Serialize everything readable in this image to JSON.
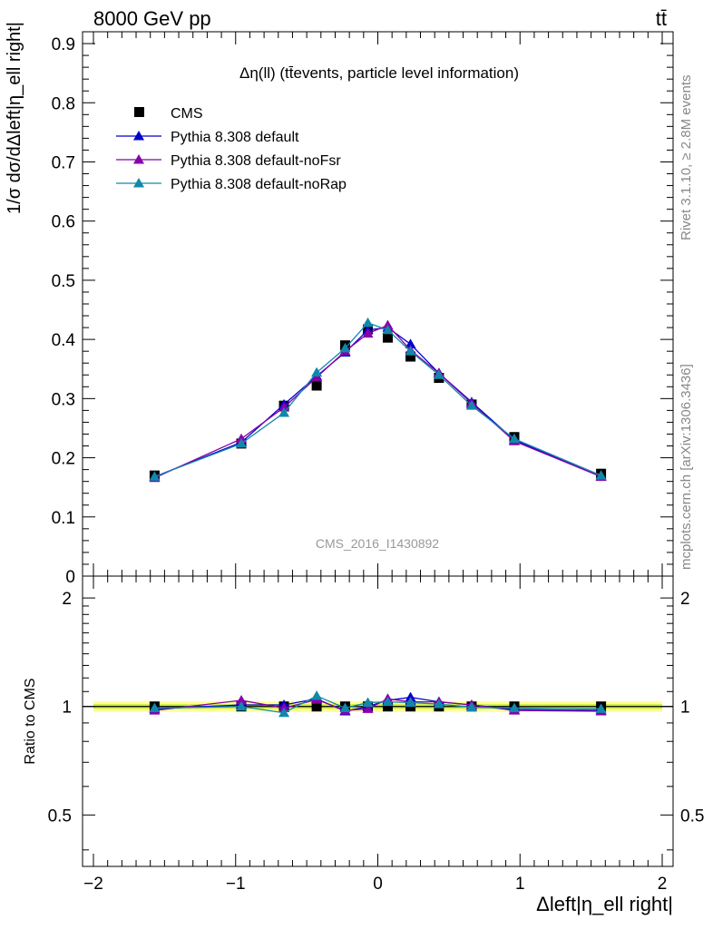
{
  "header": {
    "energy_label": "8000 GeV pp",
    "process_label": "tt̄",
    "plot_title": "Δη(ll) (tt̄events, particle level information)",
    "analysis_id": "CMS_2016_I1430892"
  },
  "side": {
    "rivet_label": "Rivet 3.1.10, ≥ 2.8M events",
    "site_label": "mcplots.cern.ch [arXiv:1306.3436]"
  },
  "chart_data": {
    "type": "line",
    "title": "Δη(ll) (tt̄events, particle level information)",
    "xlabel": "Δleft|η_ell right|",
    "ylabel": "1/σ dσ/dΔleft|η_ell right|",
    "ratio_ylabel": "Ratio to CMS",
    "xlim": [
      -2,
      2
    ],
    "ylim": [
      0,
      0.92
    ],
    "ratio_ylim": [
      0.36,
      2.3
    ],
    "ratio_scale": "log",
    "xticks": [
      -2,
      -1,
      0,
      1,
      2
    ],
    "xtick_labels": [
      "−2",
      "−1",
      "0",
      "1",
      "2"
    ],
    "yticks": [
      0,
      0.1,
      0.2,
      0.3,
      0.4,
      0.5,
      0.6,
      0.7,
      0.8,
      0.9
    ],
    "ytick_labels": [
      "0",
      "0.1",
      "0.2",
      "0.3",
      "0.4",
      "0.5",
      "0.6",
      "0.7",
      "0.8",
      "0.9"
    ],
    "ratio_yticks": [
      0.5,
      1,
      2
    ],
    "ratio_ytick_labels": [
      "0.5",
      "1",
      "2"
    ],
    "grid": false,
    "legend_position": "top-left",
    "x": [
      -1.57,
      -0.96,
      -0.66,
      -0.43,
      -0.23,
      -0.07,
      0.07,
      0.23,
      0.43,
      0.66,
      0.96,
      1.57
    ],
    "series": [
      {
        "name": "CMS",
        "color": "#000000",
        "marker": "square",
        "values": [
          0.17,
          0.224,
          0.288,
          0.322,
          0.39,
          0.417,
          0.403,
          0.371,
          0.335,
          0.29,
          0.235,
          0.173
        ],
        "ratio": [
          1.0,
          1.0,
          1.0,
          1.0,
          1.0,
          1.0,
          1.0,
          1.0,
          1.0,
          1.0,
          1.0,
          1.0
        ]
      },
      {
        "name": "Pythia 8.308 default",
        "color": "#0000cc",
        "marker": "triangle",
        "values": [
          0.168,
          0.226,
          0.29,
          0.338,
          0.378,
          0.416,
          0.42,
          0.392,
          0.343,
          0.294,
          0.23,
          0.168
        ],
        "ratio": [
          0.985,
          1.01,
          1.01,
          1.05,
          0.97,
          1.0,
          1.04,
          1.06,
          1.03,
          1.01,
          0.98,
          0.975
        ]
      },
      {
        "name": "Pythia 8.308 default-noFsr",
        "color": "#8800aa",
        "marker": "triangle",
        "values": [
          0.166,
          0.232,
          0.285,
          0.336,
          0.38,
          0.41,
          0.424,
          0.382,
          0.343,
          0.292,
          0.228,
          0.168
        ],
        "ratio": [
          0.975,
          1.04,
          0.99,
          1.045,
          0.975,
          0.985,
          1.05,
          1.03,
          1.03,
          1.01,
          0.975,
          0.97
        ]
      },
      {
        "name": "Pythia 8.308 default-noRap",
        "color": "#1188aa",
        "marker": "triangle",
        "values": [
          0.168,
          0.224,
          0.276,
          0.344,
          0.385,
          0.428,
          0.416,
          0.38,
          0.34,
          0.288,
          0.232,
          0.17
        ],
        "ratio": [
          0.99,
          1.0,
          0.96,
          1.07,
          0.99,
          1.025,
          1.03,
          1.025,
          1.015,
          0.995,
          0.99,
          0.985
        ]
      }
    ],
    "uncertainty_band": {
      "inner": [
        0.985,
        1.015
      ],
      "outer": [
        0.965,
        1.035
      ],
      "inner_color": "#ccee44",
      "outer_color": "#ffff99"
    }
  }
}
